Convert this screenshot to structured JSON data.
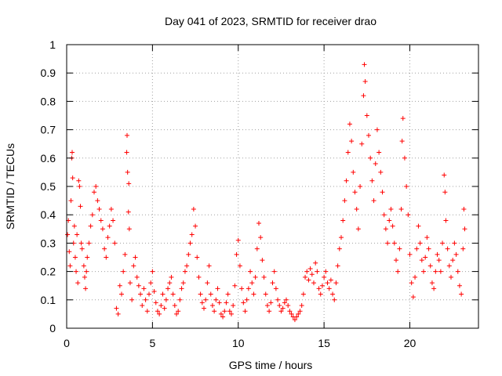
{
  "chart_data": {
    "type": "scatter",
    "title": "Day 041 of 2023, SRMTID for receiver drao",
    "xlabel": "GPS time / hours",
    "ylabel": "SRMTID / TECUs",
    "xlim": [
      0,
      24
    ],
    "ylim": [
      0,
      1
    ],
    "xticks": [
      0,
      5,
      10,
      15,
      20
    ],
    "xtick_labels": [
      "0",
      "5",
      "10",
      "15",
      "20"
    ],
    "yticks": [
      0,
      0.1,
      0.2,
      0.3,
      0.4,
      0.5,
      0.6,
      0.7,
      0.8,
      0.9,
      1
    ],
    "ytick_labels": [
      "0",
      "0.1",
      "0.2",
      "0.3",
      "0.4",
      "0.5",
      "0.6",
      "0.7",
      "0.8",
      "0.9",
      "1"
    ],
    "grid": true,
    "marker": "+",
    "color": "#ff0000",
    "series": [
      {
        "name": "SRMTID",
        "points": [
          [
            0.05,
            0.33
          ],
          [
            0.1,
            0.38
          ],
          [
            0.15,
            0.27
          ],
          [
            0.2,
            0.22
          ],
          [
            0.25,
            0.45
          ],
          [
            0.3,
            0.6
          ],
          [
            0.32,
            0.62
          ],
          [
            0.35,
            0.53
          ],
          [
            0.4,
            0.3
          ],
          [
            0.45,
            0.36
          ],
          [
            0.5,
            0.25
          ],
          [
            0.55,
            0.2
          ],
          [
            0.6,
            0.33
          ],
          [
            0.65,
            0.16
          ],
          [
            0.7,
            0.52
          ],
          [
            0.75,
            0.5
          ],
          [
            0.8,
            0.43
          ],
          [
            0.85,
            0.3
          ],
          [
            0.9,
            0.28
          ],
          [
            1.0,
            0.22
          ],
          [
            1.05,
            0.18
          ],
          [
            1.1,
            0.14
          ],
          [
            1.15,
            0.2
          ],
          [
            1.2,
            0.25
          ],
          [
            1.3,
            0.3
          ],
          [
            1.4,
            0.36
          ],
          [
            1.5,
            0.4
          ],
          [
            1.6,
            0.48
          ],
          [
            1.7,
            0.5
          ],
          [
            1.8,
            0.45
          ],
          [
            1.9,
            0.42
          ],
          [
            2.0,
            0.38
          ],
          [
            2.1,
            0.35
          ],
          [
            2.2,
            0.28
          ],
          [
            2.3,
            0.25
          ],
          [
            2.4,
            0.32
          ],
          [
            2.5,
            0.36
          ],
          [
            2.6,
            0.42
          ],
          [
            2.7,
            0.38
          ],
          [
            2.8,
            0.3
          ],
          [
            2.9,
            0.07
          ],
          [
            3.0,
            0.05
          ],
          [
            3.1,
            0.15
          ],
          [
            3.2,
            0.12
          ],
          [
            3.3,
            0.2
          ],
          [
            3.4,
            0.26
          ],
          [
            3.5,
            0.62
          ],
          [
            3.52,
            0.68
          ],
          [
            3.55,
            0.55
          ],
          [
            3.6,
            0.41
          ],
          [
            3.62,
            0.51
          ],
          [
            3.65,
            0.35
          ],
          [
            3.7,
            0.16
          ],
          [
            3.8,
            0.1
          ],
          [
            3.9,
            0.22
          ],
          [
            4.0,
            0.25
          ],
          [
            4.1,
            0.18
          ],
          [
            4.2,
            0.15
          ],
          [
            4.3,
            0.12
          ],
          [
            4.4,
            0.08
          ],
          [
            4.5,
            0.14
          ],
          [
            4.6,
            0.1
          ],
          [
            4.7,
            0.06
          ],
          [
            4.8,
            0.12
          ],
          [
            4.9,
            0.16
          ],
          [
            5.0,
            0.2
          ],
          [
            5.1,
            0.13
          ],
          [
            5.2,
            0.09
          ],
          [
            5.3,
            0.06
          ],
          [
            5.4,
            0.05
          ],
          [
            5.5,
            0.08
          ],
          [
            5.6,
            0.12
          ],
          [
            5.7,
            0.07
          ],
          [
            5.8,
            0.1
          ],
          [
            5.9,
            0.14
          ],
          [
            6.0,
            0.16
          ],
          [
            6.1,
            0.18
          ],
          [
            6.2,
            0.12
          ],
          [
            6.3,
            0.08
          ],
          [
            6.4,
            0.05
          ],
          [
            6.5,
            0.06
          ],
          [
            6.6,
            0.1
          ],
          [
            6.7,
            0.14
          ],
          [
            6.8,
            0.16
          ],
          [
            6.9,
            0.2
          ],
          [
            7.0,
            0.22
          ],
          [
            7.1,
            0.26
          ],
          [
            7.2,
            0.3
          ],
          [
            7.3,
            0.33
          ],
          [
            7.4,
            0.42
          ],
          [
            7.5,
            0.36
          ],
          [
            7.6,
            0.25
          ],
          [
            7.7,
            0.18
          ],
          [
            7.8,
            0.12
          ],
          [
            7.9,
            0.09
          ],
          [
            8.0,
            0.07
          ],
          [
            8.1,
            0.1
          ],
          [
            8.2,
            0.16
          ],
          [
            8.3,
            0.22
          ],
          [
            8.4,
            0.12
          ],
          [
            8.5,
            0.08
          ],
          [
            8.6,
            0.06
          ],
          [
            8.7,
            0.1
          ],
          [
            8.8,
            0.14
          ],
          [
            8.9,
            0.09
          ],
          [
            9.0,
            0.05
          ],
          [
            9.1,
            0.04
          ],
          [
            9.2,
            0.06
          ],
          [
            9.3,
            0.09
          ],
          [
            9.4,
            0.12
          ],
          [
            9.5,
            0.06
          ],
          [
            9.6,
            0.05
          ],
          [
            9.7,
            0.08
          ],
          [
            9.8,
            0.15
          ],
          [
            9.9,
            0.26
          ],
          [
            10.0,
            0.31
          ],
          [
            10.1,
            0.22
          ],
          [
            10.2,
            0.14
          ],
          [
            10.3,
            0.09
          ],
          [
            10.4,
            0.06
          ],
          [
            10.5,
            0.1
          ],
          [
            10.6,
            0.14
          ],
          [
            10.7,
            0.2
          ],
          [
            10.8,
            0.16
          ],
          [
            10.9,
            0.12
          ],
          [
            11.0,
            0.18
          ],
          [
            11.1,
            0.28
          ],
          [
            11.2,
            0.37
          ],
          [
            11.3,
            0.32
          ],
          [
            11.4,
            0.24
          ],
          [
            11.5,
            0.18
          ],
          [
            11.6,
            0.12
          ],
          [
            11.7,
            0.08
          ],
          [
            11.8,
            0.06
          ],
          [
            11.9,
            0.09
          ],
          [
            12.0,
            0.16
          ],
          [
            12.1,
            0.2
          ],
          [
            12.2,
            0.14
          ],
          [
            12.3,
            0.1
          ],
          [
            12.4,
            0.08
          ],
          [
            12.5,
            0.06
          ],
          [
            12.6,
            0.07
          ],
          [
            12.7,
            0.09
          ],
          [
            12.8,
            0.1
          ],
          [
            12.9,
            0.08
          ],
          [
            13.0,
            0.06
          ],
          [
            13.1,
            0.05
          ],
          [
            13.2,
            0.04
          ],
          [
            13.3,
            0.03
          ],
          [
            13.4,
            0.04
          ],
          [
            13.5,
            0.05
          ],
          [
            13.6,
            0.06
          ],
          [
            13.7,
            0.08
          ],
          [
            13.8,
            0.12
          ],
          [
            13.9,
            0.18
          ],
          [
            14.0,
            0.2
          ],
          [
            14.1,
            0.17
          ],
          [
            14.2,
            0.21
          ],
          [
            14.3,
            0.19
          ],
          [
            14.4,
            0.16
          ],
          [
            14.5,
            0.23
          ],
          [
            14.6,
            0.2
          ],
          [
            14.7,
            0.14
          ],
          [
            14.8,
            0.12
          ],
          [
            14.9,
            0.15
          ],
          [
            15.0,
            0.18
          ],
          [
            15.1,
            0.2
          ],
          [
            15.2,
            0.16
          ],
          [
            15.3,
            0.14
          ],
          [
            15.4,
            0.17
          ],
          [
            15.5,
            0.12
          ],
          [
            15.6,
            0.1
          ],
          [
            15.7,
            0.16
          ],
          [
            15.8,
            0.22
          ],
          [
            15.9,
            0.28
          ],
          [
            16.0,
            0.32
          ],
          [
            16.1,
            0.38
          ],
          [
            16.2,
            0.45
          ],
          [
            16.3,
            0.52
          ],
          [
            16.4,
            0.62
          ],
          [
            16.5,
            0.72
          ],
          [
            16.6,
            0.66
          ],
          [
            16.7,
            0.55
          ],
          [
            16.8,
            0.48
          ],
          [
            16.9,
            0.42
          ],
          [
            17.0,
            0.35
          ],
          [
            17.1,
            0.5
          ],
          [
            17.2,
            0.65
          ],
          [
            17.3,
            0.82
          ],
          [
            17.35,
            0.93
          ],
          [
            17.4,
            0.87
          ],
          [
            17.5,
            0.75
          ],
          [
            17.6,
            0.68
          ],
          [
            17.7,
            0.6
          ],
          [
            17.8,
            0.52
          ],
          [
            17.9,
            0.45
          ],
          [
            18.0,
            0.58
          ],
          [
            18.1,
            0.7
          ],
          [
            18.2,
            0.62
          ],
          [
            18.3,
            0.55
          ],
          [
            18.4,
            0.48
          ],
          [
            18.5,
            0.4
          ],
          [
            18.6,
            0.35
          ],
          [
            18.7,
            0.3
          ],
          [
            18.8,
            0.38
          ],
          [
            18.9,
            0.42
          ],
          [
            19.0,
            0.36
          ],
          [
            19.1,
            0.3
          ],
          [
            19.2,
            0.24
          ],
          [
            19.3,
            0.2
          ],
          [
            19.4,
            0.28
          ],
          [
            19.5,
            0.42
          ],
          [
            19.55,
            0.66
          ],
          [
            19.6,
            0.74
          ],
          [
            19.7,
            0.6
          ],
          [
            19.8,
            0.5
          ],
          [
            19.9,
            0.4
          ],
          [
            20.0,
            0.26
          ],
          [
            20.1,
            0.16
          ],
          [
            20.2,
            0.11
          ],
          [
            20.3,
            0.18
          ],
          [
            20.4,
            0.28
          ],
          [
            20.5,
            0.36
          ],
          [
            20.6,
            0.3
          ],
          [
            20.7,
            0.24
          ],
          [
            20.8,
            0.2
          ],
          [
            20.9,
            0.25
          ],
          [
            21.0,
            0.32
          ],
          [
            21.1,
            0.28
          ],
          [
            21.2,
            0.22
          ],
          [
            21.3,
            0.16
          ],
          [
            21.4,
            0.14
          ],
          [
            21.5,
            0.2
          ],
          [
            21.6,
            0.26
          ],
          [
            21.7,
            0.24
          ],
          [
            21.8,
            0.2
          ],
          [
            21.9,
            0.3
          ],
          [
            22.0,
            0.54
          ],
          [
            22.05,
            0.48
          ],
          [
            22.1,
            0.38
          ],
          [
            22.2,
            0.28
          ],
          [
            22.3,
            0.22
          ],
          [
            22.4,
            0.18
          ],
          [
            22.5,
            0.24
          ],
          [
            22.6,
            0.3
          ],
          [
            22.7,
            0.26
          ],
          [
            22.8,
            0.2
          ],
          [
            22.9,
            0.15
          ],
          [
            23.0,
            0.12
          ],
          [
            23.1,
            0.28
          ],
          [
            23.15,
            0.42
          ],
          [
            23.2,
            0.35
          ]
        ]
      }
    ]
  }
}
